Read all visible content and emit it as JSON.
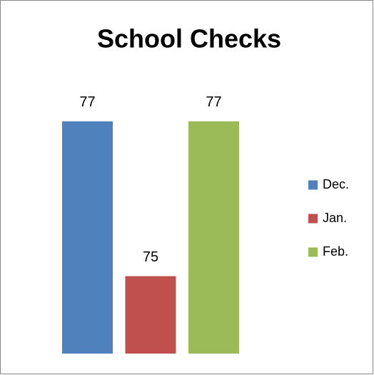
{
  "chart_data": {
    "type": "bar",
    "title": "School Checks",
    "categories": [
      null
    ],
    "series": [
      {
        "name": "Dec.",
        "color": "#4f81bd",
        "values": [
          77
        ]
      },
      {
        "name": "Jan.",
        "color": "#c0504d",
        "values": [
          75
        ]
      },
      {
        "name": "Feb.",
        "color": "#9bbb59",
        "values": [
          77
        ]
      }
    ],
    "ylim": [
      74,
      78
    ],
    "legend": "right"
  }
}
